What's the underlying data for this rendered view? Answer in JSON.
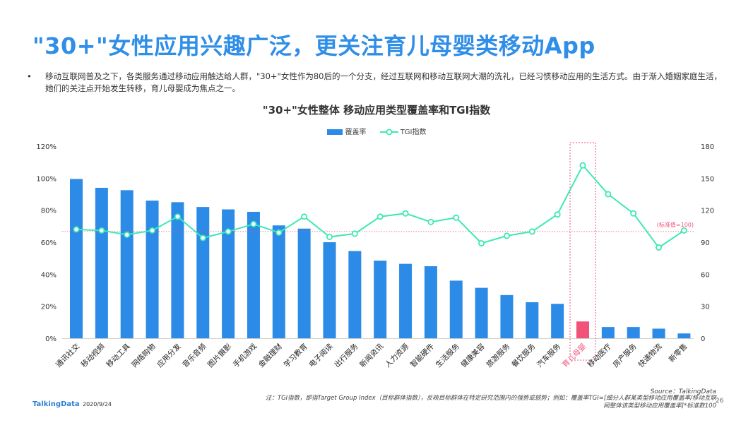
{
  "title": "\"30+\"女性应用兴趣广泛，更关注育儿母婴类移动App",
  "bullet": "移动互联网普及之下，各类服务通过移动应用触达给人群，\"30+\"女性作为80后的一个分支，经过互联网和移动互联网大潮的洗礼，已经习惯移动应用的生活方式。由于渐入婚姻家庭生活，她们的关注点开始发生转移，育儿母婴成为焦点之一。",
  "chart_data": {
    "type": "bar",
    "title": "\"30+\"女性整体  移动应用类型覆盖率和TGI指数",
    "legend_position": "top-center",
    "categories": [
      "通讯社交",
      "移动视频",
      "移动工具",
      "网络购物",
      "应用分发",
      "音乐音频",
      "图片摄影",
      "手机游戏",
      "金融理财",
      "学习教育",
      "电子阅读",
      "出行服务",
      "新闻资讯",
      "人力资源",
      "智能硬件",
      "生活服务",
      "健康美容",
      "旅游服务",
      "餐饮服务",
      "汽车服务",
      "育儿母婴",
      "移动医疗",
      "房产服务",
      "快递物流",
      "新零售"
    ],
    "series": [
      {
        "name": "覆盖率",
        "type": "bar",
        "axis": "left",
        "color": "#2b8be6",
        "values": [
          99.5,
          94,
          92.5,
          86,
          85,
          82,
          80.5,
          79,
          70.5,
          68.5,
          60,
          54.5,
          48.5,
          46.5,
          45,
          36,
          31.5,
          27,
          22.5,
          21.5,
          10.5,
          7,
          7,
          6,
          3
        ]
      },
      {
        "name": "TGI指数",
        "type": "line",
        "axis": "right",
        "color": "#3ee8b5",
        "values": [
          102,
          101,
          97,
          101,
          114,
          94,
          100,
          107,
          99,
          114,
          95,
          98,
          114,
          117,
          109,
          113,
          89,
          96,
          100,
          116,
          162,
          135,
          117,
          85,
          101
        ]
      }
    ],
    "highlight_category": "育儿母婴",
    "highlight_color": "#f0527a",
    "left_axis": {
      "ylim": [
        0,
        120
      ],
      "ticks": [
        "0%",
        "20%",
        "40%",
        "60%",
        "80%",
        "100%",
        "120%"
      ]
    },
    "right_axis": {
      "ylim": [
        0,
        180
      ],
      "ticks": [
        "0",
        "30",
        "60",
        "90",
        "120",
        "150",
        "180"
      ]
    },
    "reference_line": {
      "value": 100,
      "axis": "right",
      "label": "(标准值=100)"
    }
  },
  "footer": {
    "logo": "TalkingData",
    "date": "2020/9/24",
    "source": "Source：TalkingData",
    "note": "注：TGI指数，即指Target Group Index（目标群体指数），反映目标群体在特定研究范围内的强势或弱势；例如：覆盖率TGI=[细分人群某类型移动应用覆盖率/移动互联网整体该类型移动应用覆盖率]*标准数100",
    "page": "26"
  }
}
